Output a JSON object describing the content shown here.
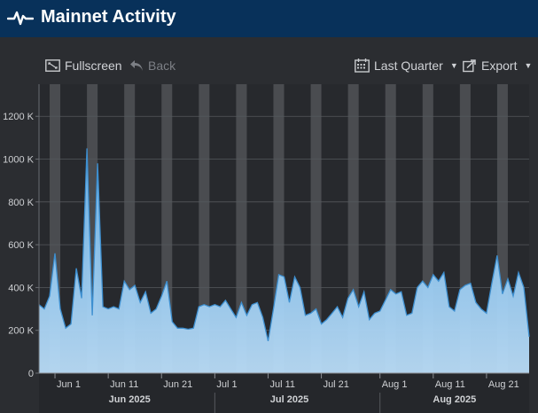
{
  "header": {
    "title": "Mainnet Activity",
    "icon": "pulse-icon"
  },
  "toolbar": {
    "fullscreen_label": "Fullscreen",
    "back_label": "Back",
    "range_label": "Last Quarter",
    "export_label": "Export"
  },
  "colors": {
    "header_bg": "#08315a",
    "area_fill_top": "#6fb6ec",
    "area_fill_bottom": "#b9dcf7",
    "area_line": "#3d8fd0",
    "band": "#4a4c50"
  },
  "chart_data": {
    "type": "area",
    "ylim": [
      0,
      1350000
    ],
    "y_ticks": [
      {
        "value": 0,
        "label": "0"
      },
      {
        "value": 200000,
        "label": "200 K"
      },
      {
        "value": 400000,
        "label": "400 K"
      },
      {
        "value": 600000,
        "label": "600 K"
      },
      {
        "value": 800000,
        "label": "800 K"
      },
      {
        "value": 1000000,
        "label": "1000 K"
      },
      {
        "value": 1200000,
        "label": "1200 K"
      }
    ],
    "x_start": "2025-05-29",
    "x_end": "2025-08-29",
    "x_ticks": [
      {
        "date": "2025-06-01",
        "label": "Jun 1"
      },
      {
        "date": "2025-06-11",
        "label": "Jun 11"
      },
      {
        "date": "2025-06-21",
        "label": "Jun 21"
      },
      {
        "date": "2025-07-01",
        "label": "Jul 1"
      },
      {
        "date": "2025-07-11",
        "label": "Jul 11"
      },
      {
        "date": "2025-07-21",
        "label": "Jul 21"
      },
      {
        "date": "2025-08-01",
        "label": "Aug 1"
      },
      {
        "date": "2025-08-11",
        "label": "Aug 11"
      },
      {
        "date": "2025-08-21",
        "label": "Aug 21"
      }
    ],
    "months": [
      {
        "date": "2025-06-15",
        "label": "Jun 2025"
      },
      {
        "date": "2025-07-15",
        "label": "Jul 2025"
      },
      {
        "date": "2025-08-15",
        "label": "Aug 2025"
      }
    ],
    "weekend_bands": [
      [
        "2025-05-31",
        "2025-06-02"
      ],
      [
        "2025-06-07",
        "2025-06-09"
      ],
      [
        "2025-06-14",
        "2025-06-16"
      ],
      [
        "2025-06-21",
        "2025-06-23"
      ],
      [
        "2025-06-28",
        "2025-06-30"
      ],
      [
        "2025-07-05",
        "2025-07-07"
      ],
      [
        "2025-07-12",
        "2025-07-14"
      ],
      [
        "2025-07-19",
        "2025-07-21"
      ],
      [
        "2025-07-26",
        "2025-07-28"
      ],
      [
        "2025-08-02",
        "2025-08-04"
      ],
      [
        "2025-08-09",
        "2025-08-11"
      ],
      [
        "2025-08-16",
        "2025-08-18"
      ],
      [
        "2025-08-23",
        "2025-08-25"
      ]
    ],
    "points": [
      [
        "2025-05-29",
        320000
      ],
      [
        "2025-05-30",
        300000
      ],
      [
        "2025-05-31",
        360000
      ],
      [
        "2025-06-01",
        560000
      ],
      [
        "2025-06-02",
        300000
      ],
      [
        "2025-06-03",
        210000
      ],
      [
        "2025-06-04",
        230000
      ],
      [
        "2025-06-05",
        490000
      ],
      [
        "2025-06-06",
        350000
      ],
      [
        "2025-06-07",
        1050000
      ],
      [
        "2025-06-08",
        270000
      ],
      [
        "2025-06-09",
        980000
      ],
      [
        "2025-06-10",
        310000
      ],
      [
        "2025-06-11",
        300000
      ],
      [
        "2025-06-12",
        310000
      ],
      [
        "2025-06-13",
        300000
      ],
      [
        "2025-06-14",
        430000
      ],
      [
        "2025-06-15",
        390000
      ],
      [
        "2025-06-16",
        410000
      ],
      [
        "2025-06-17",
        330000
      ],
      [
        "2025-06-18",
        380000
      ],
      [
        "2025-06-19",
        280000
      ],
      [
        "2025-06-20",
        300000
      ],
      [
        "2025-06-21",
        360000
      ],
      [
        "2025-06-22",
        430000
      ],
      [
        "2025-06-23",
        240000
      ],
      [
        "2025-06-24",
        210000
      ],
      [
        "2025-06-25",
        210000
      ],
      [
        "2025-06-26",
        205000
      ],
      [
        "2025-06-27",
        210000
      ],
      [
        "2025-06-28",
        310000
      ],
      [
        "2025-06-29",
        320000
      ],
      [
        "2025-06-30",
        310000
      ],
      [
        "2025-07-01",
        320000
      ],
      [
        "2025-07-02",
        310000
      ],
      [
        "2025-07-03",
        340000
      ],
      [
        "2025-07-04",
        300000
      ],
      [
        "2025-07-05",
        260000
      ],
      [
        "2025-07-06",
        330000
      ],
      [
        "2025-07-07",
        270000
      ],
      [
        "2025-07-08",
        320000
      ],
      [
        "2025-07-09",
        330000
      ],
      [
        "2025-07-10",
        260000
      ],
      [
        "2025-07-11",
        150000
      ],
      [
        "2025-07-12",
        300000
      ],
      [
        "2025-07-13",
        460000
      ],
      [
        "2025-07-14",
        450000
      ],
      [
        "2025-07-15",
        330000
      ],
      [
        "2025-07-16",
        450000
      ],
      [
        "2025-07-17",
        400000
      ],
      [
        "2025-07-18",
        270000
      ],
      [
        "2025-07-19",
        280000
      ],
      [
        "2025-07-20",
        300000
      ],
      [
        "2025-07-21",
        230000
      ],
      [
        "2025-07-22",
        250000
      ],
      [
        "2025-07-23",
        280000
      ],
      [
        "2025-07-24",
        310000
      ],
      [
        "2025-07-25",
        260000
      ],
      [
        "2025-07-26",
        350000
      ],
      [
        "2025-07-27",
        390000
      ],
      [
        "2025-07-28",
        310000
      ],
      [
        "2025-07-29",
        380000
      ],
      [
        "2025-07-30",
        250000
      ],
      [
        "2025-07-31",
        280000
      ],
      [
        "2025-08-01",
        290000
      ],
      [
        "2025-08-02",
        340000
      ],
      [
        "2025-08-03",
        390000
      ],
      [
        "2025-08-04",
        370000
      ],
      [
        "2025-08-05",
        380000
      ],
      [
        "2025-08-06",
        270000
      ],
      [
        "2025-08-07",
        280000
      ],
      [
        "2025-08-08",
        400000
      ],
      [
        "2025-08-09",
        430000
      ],
      [
        "2025-08-10",
        400000
      ],
      [
        "2025-08-11",
        460000
      ],
      [
        "2025-08-12",
        430000
      ],
      [
        "2025-08-13",
        470000
      ],
      [
        "2025-08-14",
        310000
      ],
      [
        "2025-08-15",
        290000
      ],
      [
        "2025-08-16",
        390000
      ],
      [
        "2025-08-17",
        410000
      ],
      [
        "2025-08-18",
        420000
      ],
      [
        "2025-08-19",
        330000
      ],
      [
        "2025-08-20",
        300000
      ],
      [
        "2025-08-21",
        280000
      ],
      [
        "2025-08-22",
        420000
      ],
      [
        "2025-08-23",
        550000
      ],
      [
        "2025-08-24",
        370000
      ],
      [
        "2025-08-25",
        440000
      ],
      [
        "2025-08-26",
        360000
      ],
      [
        "2025-08-27",
        470000
      ],
      [
        "2025-08-28",
        400000
      ],
      [
        "2025-08-29",
        170000
      ]
    ]
  }
}
